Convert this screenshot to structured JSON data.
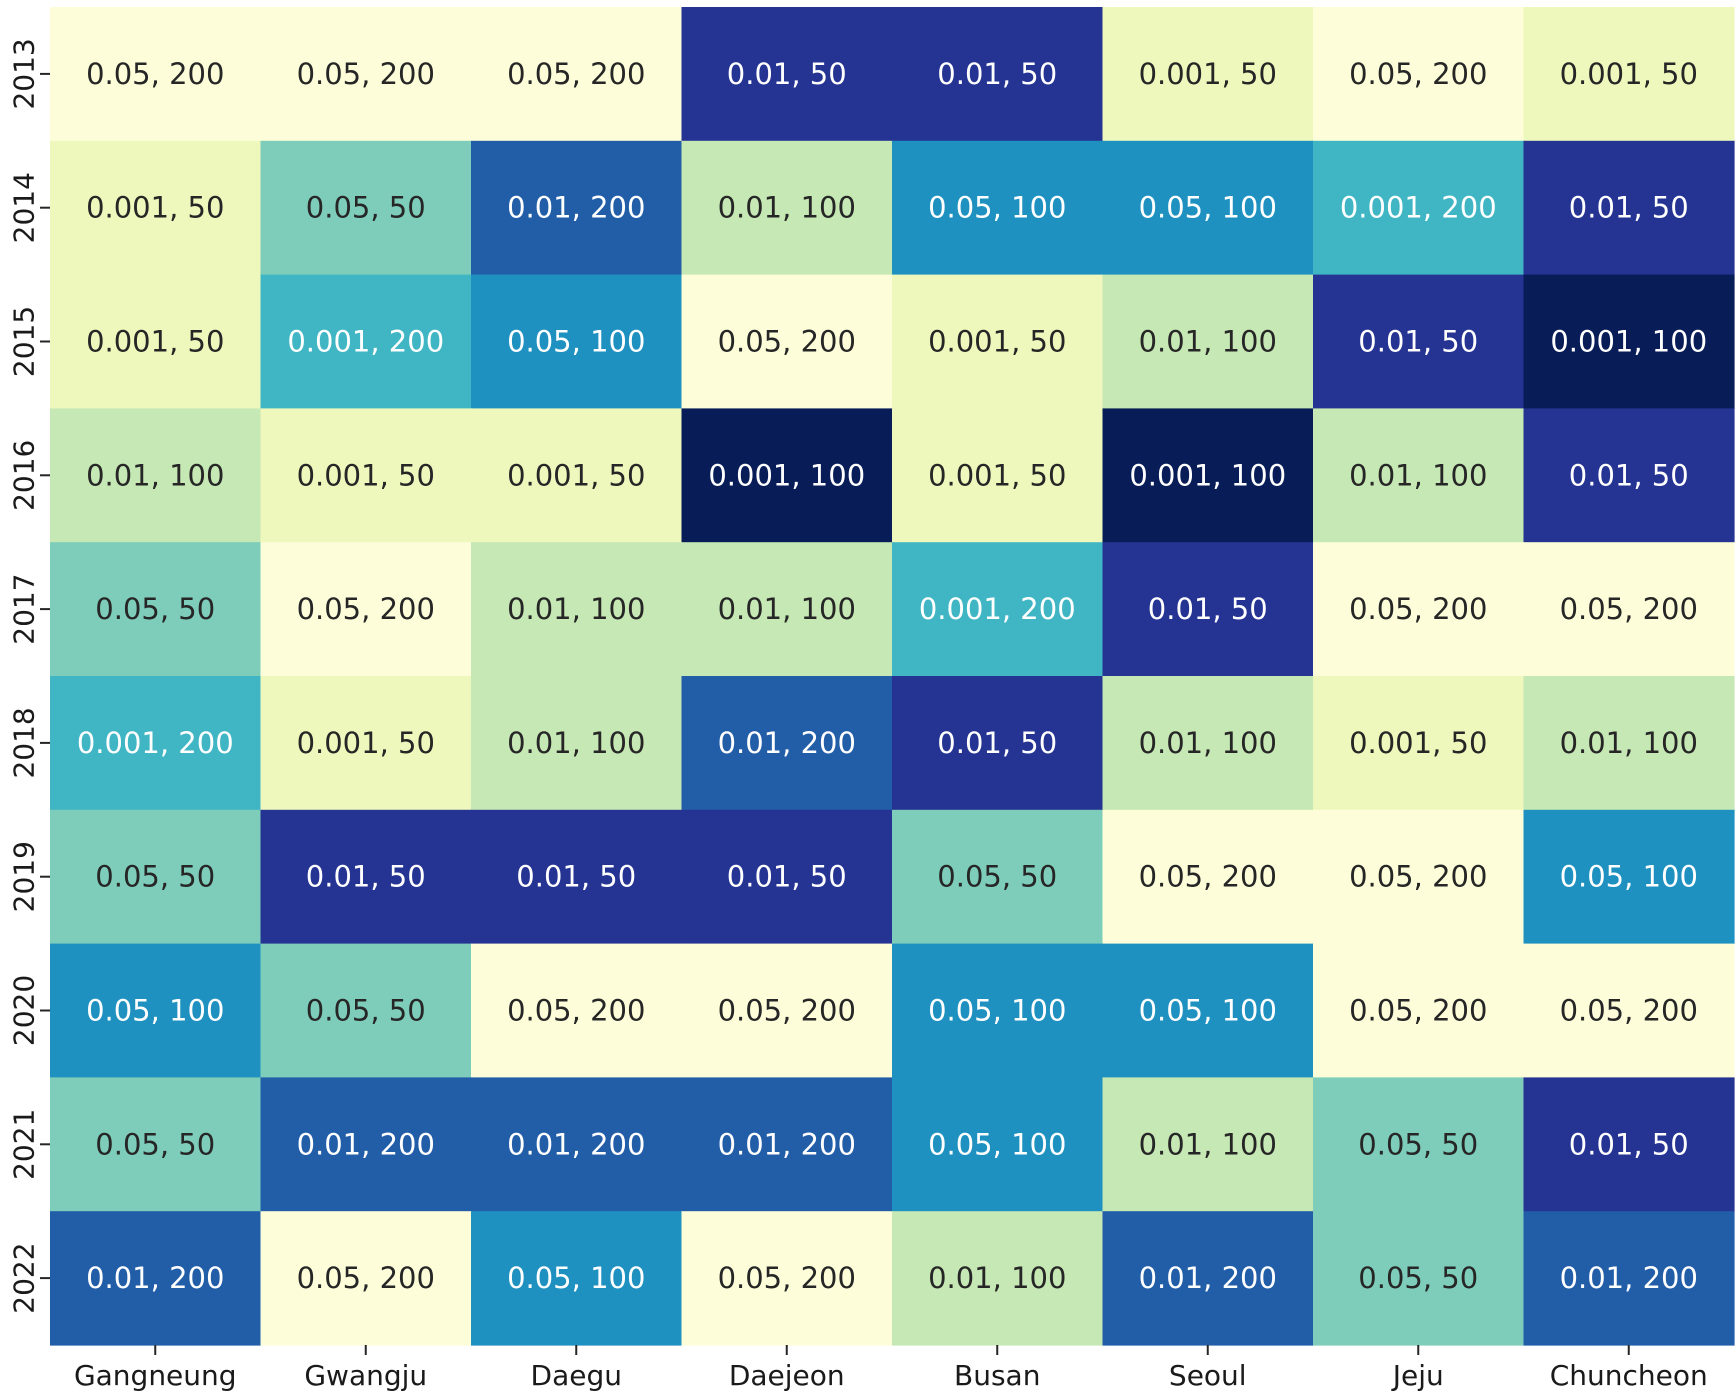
{
  "chart_data": {
    "type": "heatmap",
    "title": "",
    "xlabel": "",
    "ylabel": "",
    "x_categories": [
      "Gangneung",
      "Gwangju",
      "Daegu",
      "Daejeon",
      "Busan",
      "Seoul",
      "Jeju",
      "Chuncheon"
    ],
    "y_categories": [
      "2013",
      "2014",
      "2015",
      "2016",
      "2017",
      "2018",
      "2019",
      "2020",
      "2021",
      "2022"
    ],
    "cells": [
      [
        "0.05, 200",
        "0.05, 200",
        "0.05, 200",
        "0.01, 50",
        "0.01, 50",
        "0.001, 50",
        "0.05, 200",
        "0.001, 50"
      ],
      [
        "0.001, 50",
        "0.05, 50",
        "0.01, 200",
        "0.01, 100",
        "0.05, 100",
        "0.05, 100",
        "0.001, 200",
        "0.01, 50"
      ],
      [
        "0.001, 50",
        "0.001, 200",
        "0.05, 100",
        "0.05, 200",
        "0.001, 50",
        "0.01, 100",
        "0.01, 50",
        "0.001, 100"
      ],
      [
        "0.01, 100",
        "0.001, 50",
        "0.001, 50",
        "0.001, 100",
        "0.001, 50",
        "0.001, 100",
        "0.01, 100",
        "0.01, 50"
      ],
      [
        "0.05, 50",
        "0.05, 200",
        "0.01, 100",
        "0.01, 100",
        "0.001, 200",
        "0.01, 50",
        "0.05, 200",
        "0.05, 200"
      ],
      [
        "0.001, 200",
        "0.001, 50",
        "0.01, 100",
        "0.01, 200",
        "0.01, 50",
        "0.01, 100",
        "0.001, 50",
        "0.01, 100"
      ],
      [
        "0.05, 50",
        "0.01, 50",
        "0.01, 50",
        "0.01, 50",
        "0.05, 50",
        "0.05, 200",
        "0.05, 200",
        "0.05, 100"
      ],
      [
        "0.05, 100",
        "0.05, 50",
        "0.05, 200",
        "0.05, 200",
        "0.05, 100",
        "0.05, 100",
        "0.05, 200",
        "0.05, 200"
      ],
      [
        "0.05, 50",
        "0.01, 200",
        "0.01, 200",
        "0.01, 200",
        "0.05, 100",
        "0.01, 100",
        "0.05, 50",
        "0.01, 50"
      ],
      [
        "0.01, 200",
        "0.05, 200",
        "0.05, 100",
        "0.05, 200",
        "0.01, 100",
        "0.01, 200",
        "0.05, 50",
        "0.01, 200"
      ]
    ],
    "colorscale": "YlGnBu",
    "category_colors": {
      "0.05, 200": "#fdfed9",
      "0.001, 50": "#eff8bc",
      "0.01, 100": "#c6e8b4",
      "0.05, 50": "#7ecdbb",
      "0.001, 200": "#40b6c4",
      "0.05, 100": "#1e91c0",
      "0.01, 200": "#225ea8",
      "0.01, 50": "#253393",
      "0.001, 100": "#081d58"
    },
    "dark_text_color": "#262626",
    "light_text_color": "#ffffff",
    "legend": "none",
    "grid": false
  }
}
